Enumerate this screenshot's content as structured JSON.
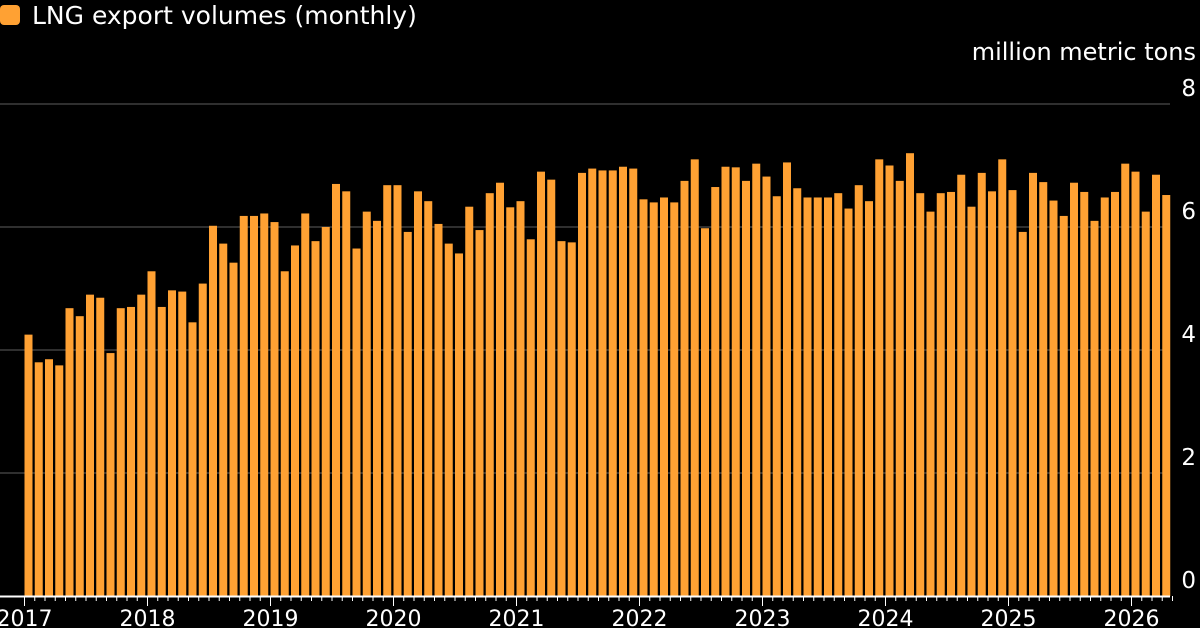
{
  "legend": {
    "label": "LNG export volumes (monthly)",
    "color": "#FFA133"
  },
  "chart_data": {
    "type": "bar",
    "title": "",
    "ylabel": "million metric tons",
    "ylim": [
      0,
      8
    ],
    "yticks": [
      "0",
      "2",
      "4",
      "6",
      "8"
    ],
    "xticks": [
      "2017",
      "2018",
      "2019",
      "2020",
      "2021",
      "2022",
      "2023",
      "2024",
      "2025",
      "2026"
    ],
    "gridlines": true,
    "series": [
      {
        "name": "LNG export volumes (monthly)",
        "color": "#FFA133",
        "start": "2017-01",
        "values": [
          4.25,
          3.8,
          3.85,
          3.75,
          4.68,
          4.55,
          4.9,
          4.85,
          3.95,
          4.68,
          4.7,
          4.9,
          5.28,
          4.7,
          4.97,
          4.95,
          4.45,
          5.08,
          6.02,
          5.73,
          5.42,
          6.18,
          6.18,
          6.22,
          6.08,
          5.28,
          5.7,
          6.22,
          5.77,
          6.0,
          6.7,
          6.58,
          5.65,
          6.25,
          6.1,
          6.68,
          6.68,
          5.92,
          6.58,
          6.42,
          6.05,
          5.73,
          5.57,
          6.33,
          5.95,
          6.55,
          6.72,
          6.32,
          6.42,
          5.8,
          6.9,
          6.77,
          5.77,
          5.75,
          6.88,
          6.95,
          6.92,
          6.92,
          6.98,
          6.95,
          6.45,
          6.4,
          6.48,
          6.4,
          6.75,
          7.1,
          5.98,
          6.65,
          6.98,
          6.97,
          6.75,
          7.03,
          6.82,
          6.5,
          7.05,
          6.63,
          6.48,
          6.48,
          6.48,
          6.55,
          6.3,
          6.68,
          6.42,
          7.1,
          7.0,
          6.75,
          7.2,
          6.55,
          6.25,
          6.55,
          6.57,
          6.85,
          6.33,
          6.88,
          6.58,
          7.1,
          6.6,
          5.92,
          6.88,
          6.73,
          6.43,
          6.18,
          6.72,
          6.57,
          6.1,
          6.48,
          6.57,
          7.03,
          6.9,
          6.25,
          6.85,
          6.52
        ]
      }
    ]
  }
}
